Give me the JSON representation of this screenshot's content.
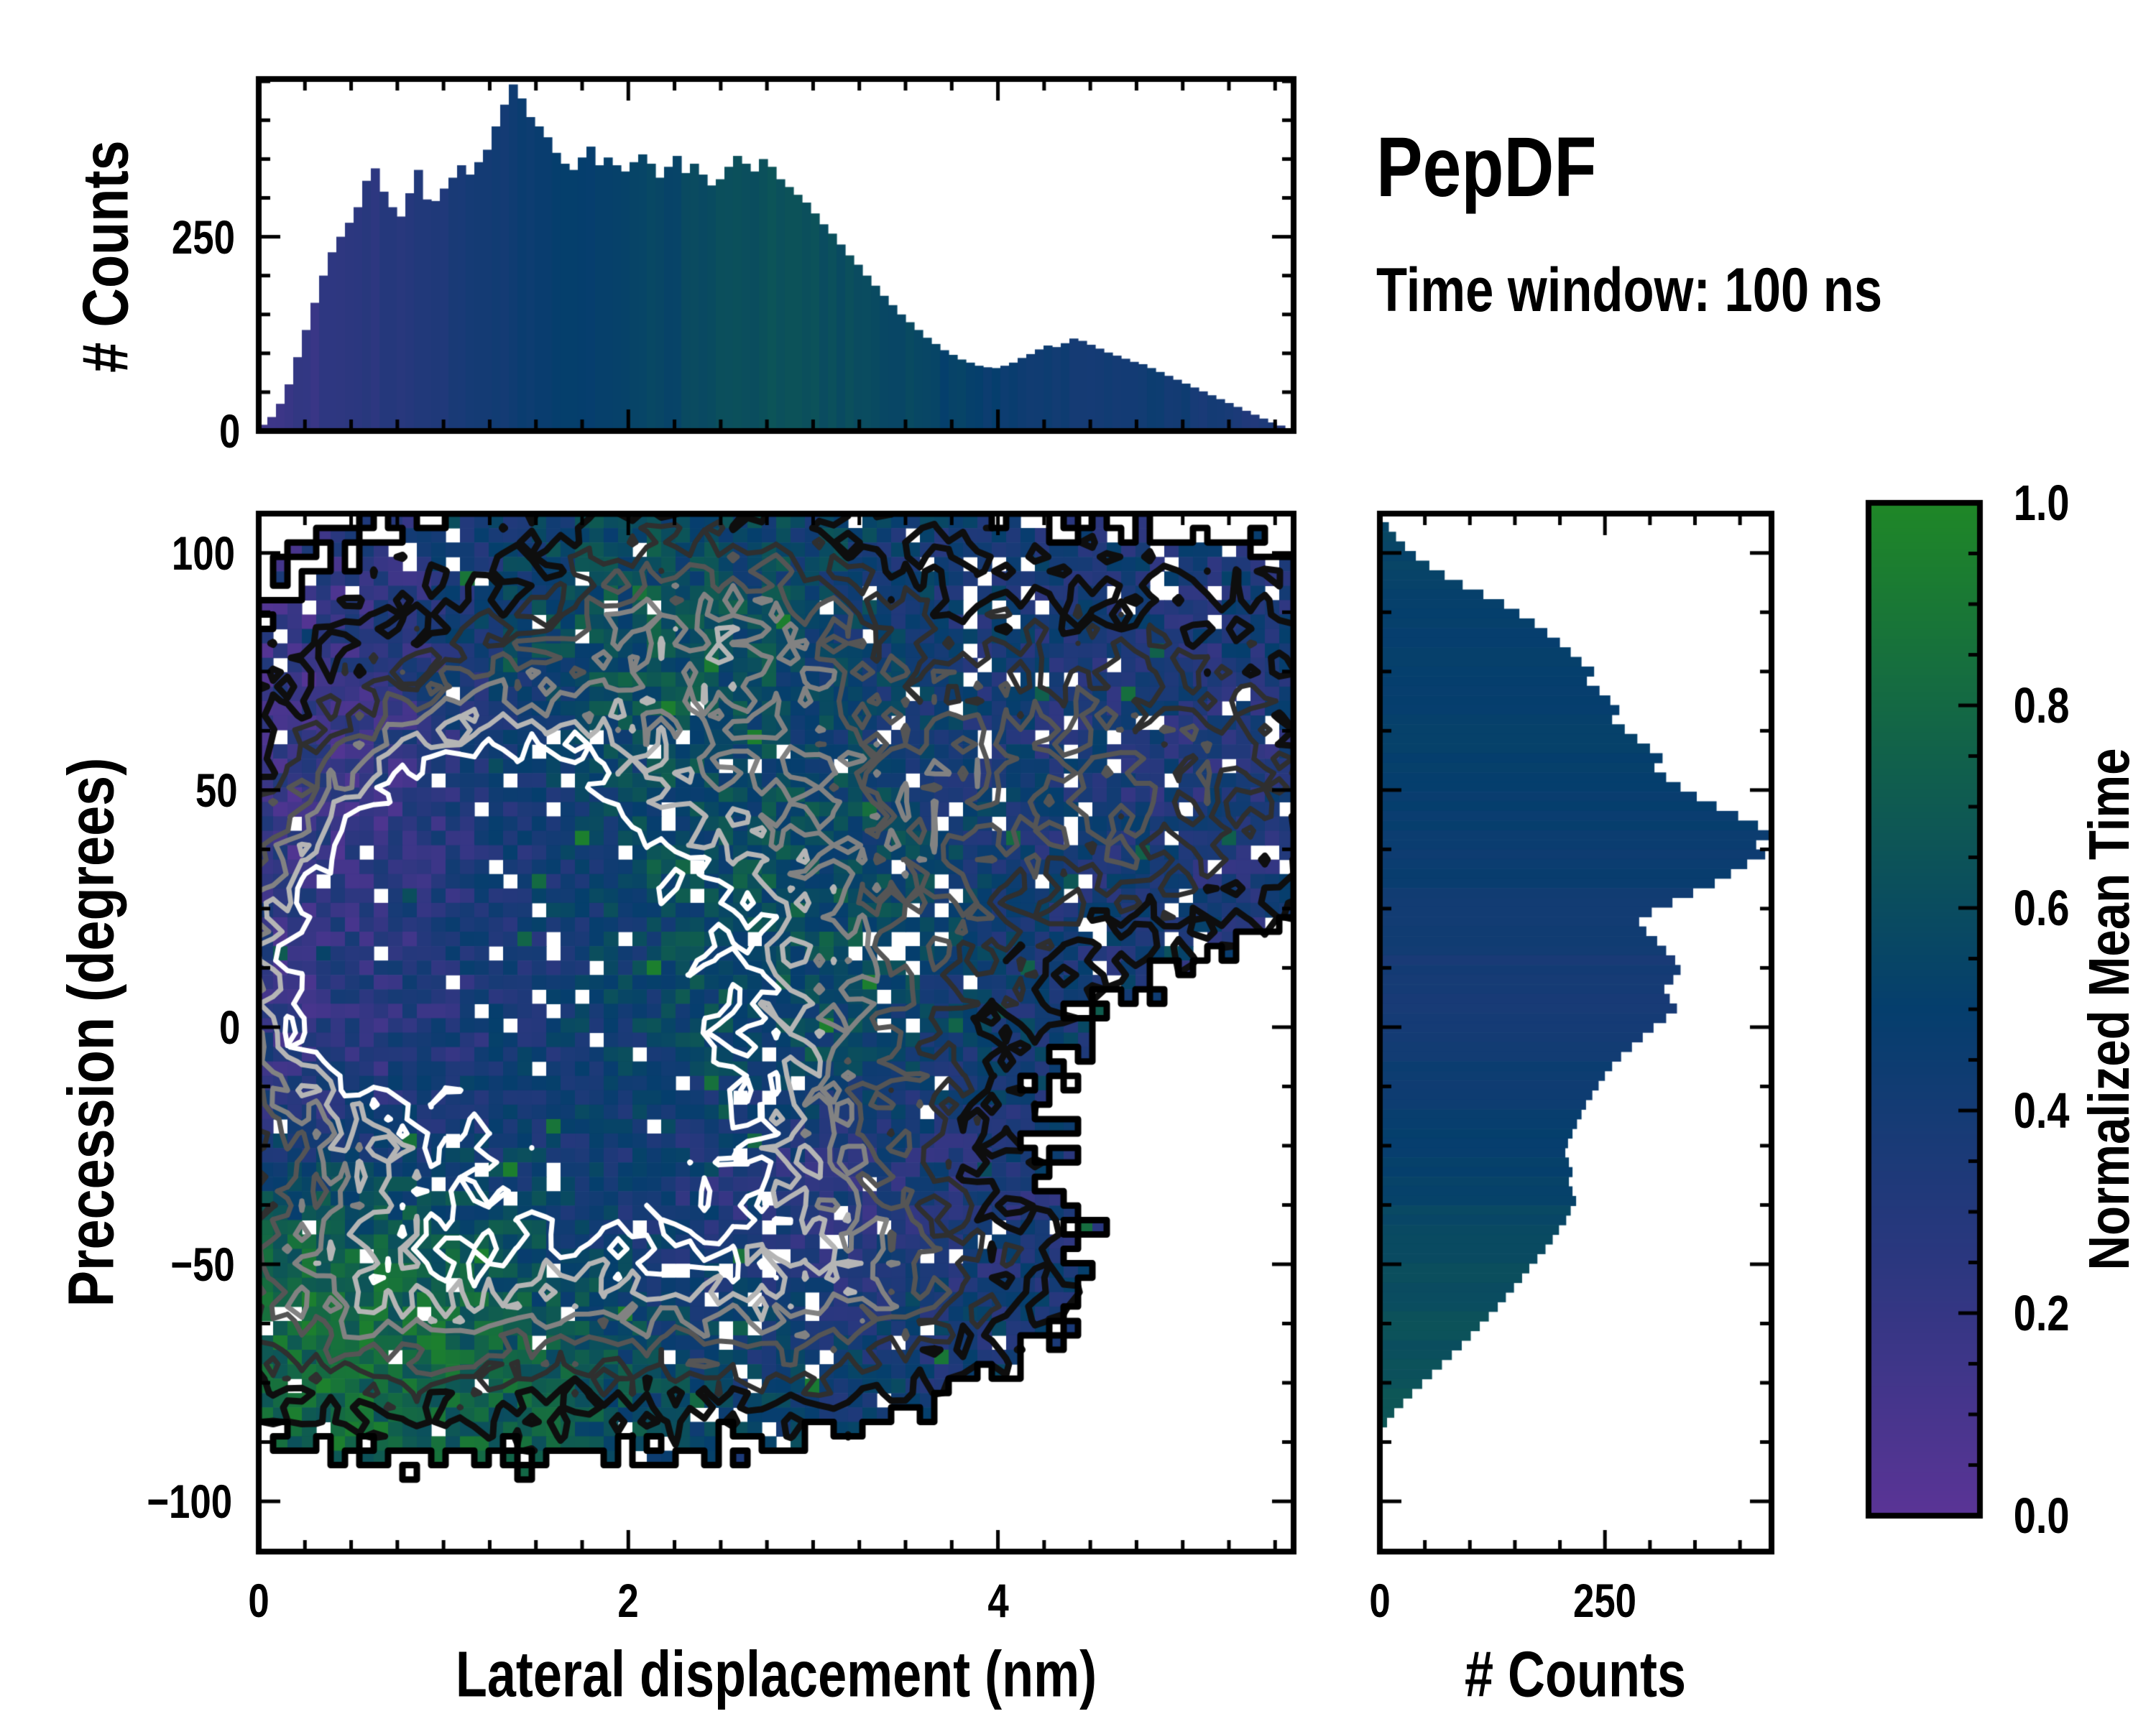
{
  "title": {
    "text": "PepDF",
    "subtitle": "Time window: 100 ns"
  },
  "colormap": {
    "positions": [
      0,
      0.25,
      0.5,
      0.75,
      1
    ],
    "colors": [
      "#5a3496",
      "#2b377f",
      "#053e6d",
      "#11614b",
      "#1f8727"
    ]
  },
  "chart_data": [
    {
      "id": "top_histogram",
      "type": "bar",
      "ylabel": "# Counts",
      "yticks": {
        "values": [
          0,
          250
        ],
        "labels": [
          "0",
          "250"
        ]
      },
      "ylim": [
        0,
        453
      ],
      "xlim": [
        0,
        5.6
      ],
      "minor_y_step": 50,
      "values": [
        8,
        18,
        35,
        60,
        95,
        130,
        165,
        200,
        230,
        250,
        268,
        288,
        322,
        338,
        308,
        288,
        276,
        306,
        336,
        298,
        296,
        312,
        326,
        342,
        330,
        346,
        362,
        392,
        420,
        446,
        428,
        404,
        392,
        378,
        358,
        344,
        336,
        352,
        366,
        342,
        352,
        342,
        334,
        346,
        356,
        344,
        326,
        340,
        354,
        332,
        344,
        330,
        316,
        324,
        340,
        354,
        344,
        334,
        350,
        340,
        324,
        314,
        304,
        294,
        280,
        266,
        254,
        240,
        226,
        214,
        200,
        187,
        174,
        162,
        150,
        140,
        130,
        120,
        112,
        104,
        98,
        92,
        88,
        84,
        82,
        81,
        84,
        88,
        94,
        99,
        105,
        110,
        108,
        113,
        119,
        116,
        111,
        106,
        101,
        97,
        93,
        89,
        86,
        81,
        76,
        71,
        66,
        61,
        56,
        51,
        46,
        41,
        36,
        31,
        26,
        21,
        16,
        11,
        7,
        3
      ],
      "tint_stops": [
        [
          0,
          0.16
        ],
        [
          0.08,
          0.22
        ],
        [
          0.17,
          0.32
        ],
        [
          0.25,
          0.45
        ],
        [
          0.33,
          0.52
        ],
        [
          0.42,
          0.58
        ],
        [
          0.5,
          0.63
        ],
        [
          0.58,
          0.6
        ],
        [
          0.65,
          0.55
        ],
        [
          0.72,
          0.47
        ],
        [
          0.8,
          0.4
        ],
        [
          0.88,
          0.43
        ],
        [
          0.95,
          0.36
        ],
        [
          1,
          0.3
        ]
      ]
    },
    {
      "id": "main_heatmap",
      "type": "heatmap",
      "xlabel": "Lateral displacement (nm)",
      "ylabel": "Precession (degrees)",
      "xticks": {
        "values": [
          0,
          2,
          4
        ],
        "labels": [
          "0",
          "2",
          "4"
        ]
      },
      "yticks": {
        "values": [
          100,
          50,
          0,
          -50,
          -100
        ],
        "labels": [
          "100",
          "50",
          "0",
          "−50",
          "−100"
        ]
      },
      "xlim": [
        0,
        5.6
      ],
      "ylim": [
        -110.6,
        108.3
      ],
      "minor_x_step": 0.25,
      "minor_y_step": 12.5,
      "grid": {
        "nx": 72,
        "ny": 72,
        "seed": 1337,
        "mask_threshold": 0.32,
        "mask_noise": 0.1,
        "hole_base": 0.035,
        "value_noise": 0.16
      },
      "occupancy": [
        {
          "x": 1.0,
          "y": 25,
          "sx": 1.25,
          "sy": 48,
          "a": 1.0
        },
        {
          "x": 2.4,
          "y": 30,
          "sx": 1.05,
          "sy": 52,
          "a": 0.95
        },
        {
          "x": 3.1,
          "y": 62,
          "sx": 0.8,
          "sy": 28,
          "a": 0.7
        },
        {
          "x": 4.5,
          "y": 55,
          "sx": 1.15,
          "sy": 26,
          "a": 0.95
        },
        {
          "x": 5.3,
          "y": 62,
          "sx": 0.55,
          "sy": 20,
          "a": 0.55
        },
        {
          "x": 2.45,
          "y": 95,
          "sx": 0.45,
          "sy": 12,
          "a": 0.55
        },
        {
          "x": 0.6,
          "y": -55,
          "sx": 0.75,
          "sy": 20,
          "a": 0.9
        },
        {
          "x": 2.0,
          "y": -45,
          "sx": 1.0,
          "sy": 22,
          "a": 0.85
        },
        {
          "x": 3.2,
          "y": -55,
          "sx": 0.75,
          "sy": 16,
          "a": 0.68
        },
        {
          "x": 1.5,
          "y": -15,
          "sx": 1.4,
          "sy": 30,
          "a": 0.8
        },
        {
          "x": 4.9,
          "y": 86,
          "sx": 0.45,
          "sy": 9,
          "a": 0.45
        }
      ],
      "field_base": {
        "v": 0.48,
        "w": 0.25
      },
      "field": [
        {
          "x": 0.45,
          "y": 60,
          "sx": 0.6,
          "sy": 22,
          "v": 0.06,
          "w": 2.6
        },
        {
          "x": 0.35,
          "y": 10,
          "sx": 0.55,
          "sy": 28,
          "v": 0.12,
          "w": 2.0
        },
        {
          "x": 1.0,
          "y": 30,
          "sx": 0.8,
          "sy": 32,
          "v": 0.2,
          "w": 1.6
        },
        {
          "x": 1.5,
          "y": 70,
          "sx": 0.7,
          "sy": 18,
          "v": 0.45,
          "w": 1.2
        },
        {
          "x": 2.1,
          "y": 78,
          "sx": 0.55,
          "sy": 14,
          "v": 0.85,
          "w": 1.8
        },
        {
          "x": 1.1,
          "y": -5,
          "sx": 0.7,
          "sy": 25,
          "v": 0.3,
          "w": 1.4
        },
        {
          "x": 1.9,
          "y": 15,
          "sx": 1.1,
          "sy": 40,
          "v": 0.62,
          "w": 1.5
        },
        {
          "x": 2.5,
          "y": 45,
          "sx": 0.8,
          "sy": 22,
          "v": 0.7,
          "w": 1.4
        },
        {
          "x": 2.95,
          "y": 25,
          "sx": 0.5,
          "sy": 16,
          "v": 0.88,
          "w": 1.6
        },
        {
          "x": 3.5,
          "y": 60,
          "sx": 0.7,
          "sy": 25,
          "v": 0.5,
          "w": 1.2
        },
        {
          "x": 4.6,
          "y": 55,
          "sx": 1.2,
          "sy": 30,
          "v": 0.32,
          "w": 2.6
        },
        {
          "x": 3.6,
          "y": -5,
          "sx": 0.8,
          "sy": 30,
          "v": 0.42,
          "w": 1.5
        },
        {
          "x": 2.85,
          "y": -38,
          "sx": 0.8,
          "sy": 14,
          "v": 0.1,
          "w": 2.0
        },
        {
          "x": 0.55,
          "y": -57,
          "sx": 0.7,
          "sy": 19,
          "v": 0.88,
          "w": 3.0
        },
        {
          "x": 1.3,
          "y": -68,
          "sx": 0.6,
          "sy": 12,
          "v": 0.8,
          "w": 1.8
        },
        {
          "x": 1.7,
          "y": -38,
          "sx": 0.6,
          "sy": 18,
          "v": 0.55,
          "w": 1.3
        },
        {
          "x": 3.2,
          "y": -60,
          "sx": 0.8,
          "sy": 15,
          "v": 0.42,
          "w": 1.8
        },
        {
          "x": 2.2,
          "y": -62,
          "sx": 0.7,
          "sy": 14,
          "v": 0.5,
          "w": 1.3
        },
        {
          "x": 4.9,
          "y": 85,
          "sx": 0.5,
          "sy": 10,
          "v": 0.38,
          "w": 1.5
        },
        {
          "x": 2.6,
          "y": 95,
          "sx": 0.5,
          "sy": 12,
          "v": 0.55,
          "w": 1.4
        }
      ],
      "contour": {
        "gaussians": [
          {
            "x": 1.15,
            "y": 35,
            "sx": 0.6,
            "sy": 25,
            "a": 1.05
          },
          {
            "x": 0.45,
            "y": 8,
            "sx": 0.5,
            "sy": 22,
            "a": 0.75
          },
          {
            "x": 2.3,
            "y": 8,
            "sx": 0.95,
            "sy": 40,
            "a": 0.8
          },
          {
            "x": 1.7,
            "y": -35,
            "sx": 0.9,
            "sy": 22,
            "a": 0.55
          },
          {
            "x": 0.6,
            "y": -55,
            "sx": 0.6,
            "sy": 16,
            "a": 0.5
          },
          {
            "x": 4.5,
            "y": 55,
            "sx": 1.1,
            "sy": 26,
            "a": 0.42
          },
          {
            "x": 2.45,
            "y": 85,
            "sx": 0.6,
            "sy": 16,
            "a": 0.45
          },
          {
            "x": 3.1,
            "y": -55,
            "sx": 0.7,
            "sy": 14,
            "a": 0.4
          }
        ],
        "levels": [
          0.16,
          0.3,
          0.44,
          0.58,
          0.72,
          0.86
        ],
        "colors": [
          "#0e0e0e",
          "#2f2f2f",
          "#555555",
          "#828282",
          "#b5b5b5",
          "#ffffff"
        ],
        "widths": [
          9,
          7,
          7,
          7,
          7,
          7
        ],
        "noise": 0.13,
        "boundary_color": "#000000",
        "boundary_width": 9
      }
    },
    {
      "id": "right_histogram",
      "type": "hbar",
      "xlabel": "# Counts",
      "xticks": {
        "values": [
          0,
          250
        ],
        "labels": [
          "0",
          "250"
        ]
      },
      "xlim": [
        0,
        435
      ],
      "minor_x_step": 50,
      "bin_start_deg": 106.5,
      "bin_step_deg": 2.03,
      "values": [
        10,
        18,
        28,
        40,
        55,
        72,
        92,
        115,
        138,
        155,
        172,
        186,
        200,
        212,
        224,
        238,
        230,
        244,
        256,
        266,
        258,
        272,
        286,
        300,
        314,
        305,
        318,
        334,
        352,
        374,
        398,
        420,
        432,
        418,
        428,
        408,
        390,
        372,
        348,
        325,
        302,
        288,
        296,
        308,
        318,
        328,
        334,
        326,
        316,
        322,
        330,
        318,
        304,
        292,
        280,
        268,
        258,
        250,
        243,
        236,
        229,
        224,
        219,
        214,
        209,
        206,
        210,
        214,
        210,
        214,
        218,
        212,
        207,
        199,
        192,
        184,
        175,
        166,
        158,
        149,
        140,
        131,
        121,
        111,
        101,
        91,
        80,
        69,
        58,
        47,
        36,
        26,
        16,
        8
      ],
      "tint_stops": [
        [
          0,
          0.55
        ],
        [
          0.12,
          0.5
        ],
        [
          0.25,
          0.52
        ],
        [
          0.4,
          0.45
        ],
        [
          0.5,
          0.38
        ],
        [
          0.62,
          0.45
        ],
        [
          0.75,
          0.55
        ],
        [
          0.88,
          0.62
        ],
        [
          1,
          0.66
        ]
      ]
    },
    {
      "id": "colorbar",
      "type": "colorbar",
      "label": "Normalized Mean Time",
      "ticks": {
        "values": [
          0,
          0.2,
          0.4,
          0.6,
          0.8,
          1.0
        ],
        "labels": [
          "0.0",
          "0.2",
          "0.4",
          "0.6",
          "0.8",
          "1.0"
        ]
      },
      "minor_step": 0.05,
      "lim": [
        0,
        1
      ]
    }
  ]
}
